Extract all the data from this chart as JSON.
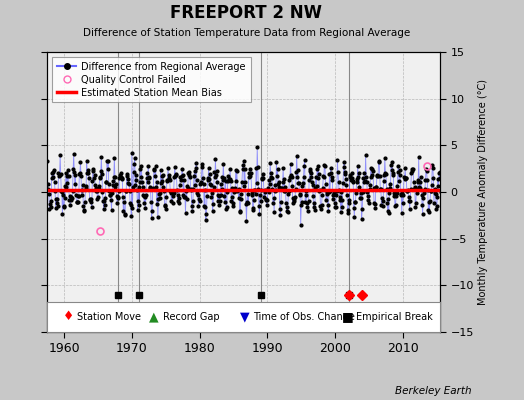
{
  "title": "FREEPORT 2 NW",
  "subtitle": "Difference of Station Temperature Data from Regional Average",
  "ylabel_right": "Monthly Temperature Anomaly Difference (°C)",
  "xlim": [
    1957.5,
    2015.5
  ],
  "ylim": [
    -15,
    15
  ],
  "yticks": [
    -15,
    -10,
    -5,
    0,
    5,
    10,
    15
  ],
  "xticks": [
    1960,
    1970,
    1980,
    1990,
    2000,
    2010
  ],
  "bg_color": "#c8c8c8",
  "plot_bg_color": "#f0f0f0",
  "grid_color": "#aaaaaa",
  "line_color": "#6666ff",
  "marker_color": "#000000",
  "bias_color": "#ff0000",
  "bias_value": 0.2,
  "empirical_breaks": [
    1968,
    1971,
    1989,
    2002
  ],
  "station_moves": [
    2002,
    2004
  ],
  "qc_failed_x": [
    1965.3
  ],
  "qc_failed_y": [
    -4.2
  ],
  "qc_failed2_x": [
    2013.5
  ],
  "qc_failed2_y": [
    2.8
  ],
  "marker_y": -11.0,
  "watermark": "Berkeley Earth",
  "seed": 7
}
